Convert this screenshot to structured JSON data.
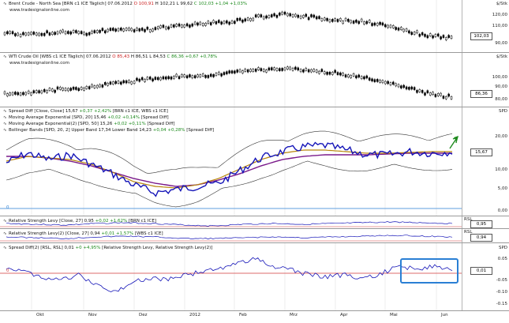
{
  "panes": [
    {
      "id": "brent",
      "legend": [
        {
          "name": "Brent Crude - North Sea [BRN c1 ICE  Täglich] 07.06.2012 ",
          "o": "O 100,91",
          "h": " H 102,21 L 99,62 ",
          "c": "C 102,03 +1,04 +1,03%"
        }
      ],
      "watermark": "www.tradesignalonline.com",
      "unit": "$/Stk",
      "ticks": [
        "120,00",
        "110,00",
        "100,00",
        "90,00"
      ],
      "current": "102,03"
    },
    {
      "id": "wti",
      "legend": [
        {
          "name": "WTI Crude Oil [WBS c1 ICE  Täglich] 07.06.2012 ",
          "o": "O 85,43",
          "h": " H 86,51 L 84,53 ",
          "c": "C 86,36 +0,67 +0,78%"
        }
      ],
      "watermark": "www.tradesignalonline.com",
      "unit": "$/Stk",
      "ticks": [
        "100,00",
        "90,00",
        "80,00"
      ],
      "current": "86,36"
    },
    {
      "id": "spread",
      "legend": [
        {
          "text": "Spread Diff [Close, Close] 15,67 ",
          "chg": "+0,37 +2,42%",
          "tail": " [BRN c1 ICE, WBS c1 ICE]"
        },
        {
          "text": "Moving Average Exponential [SPD, 20] 15,46 ",
          "chg": "+0,02 +0,14%",
          "tail": " [Spread Diff]"
        },
        {
          "text": "Moving Average Exponential(2) [SPD, 50] 15,26 ",
          "chg": "+0,02 +0,11%",
          "tail": " [Spread Diff]"
        },
        {
          "text": "Bollinger Bands [SPD, 20, 2] Upper Band 17,34 Lower Band 14,23 ",
          "chg": "+0,04 +0,28%",
          "tail": " [Spread Diff]"
        }
      ],
      "unit": "SPD",
      "ticks": [
        "20,00",
        "10,00",
        "5,00",
        "0,00"
      ],
      "current": "15,67",
      "zero_marker": "0"
    },
    {
      "id": "rsl1",
      "legend": [
        {
          "text": "Relative Strength Levy [Close, 27] 0,95 ",
          "chg": "+0,02 +1,62%",
          "tail": " [BRN c1 ICE]"
        }
      ],
      "unit": "RSL",
      "current": "0,95"
    },
    {
      "id": "rsl2",
      "legend": [
        {
          "text": "Relative Strength Levy(2) [Close, 27] 0,94 ",
          "chg": "+0,01 +1,57%",
          "tail": " [WBS c1 ICE]"
        }
      ],
      "unit": "RSL",
      "current": "0,94"
    },
    {
      "id": "spreaddiff2",
      "legend": [
        {
          "text": "Spread Diff(2) [RSL, RSL] 0,01 ",
          "chg": "+0 +4,95%",
          "tail": " [Relative Strength Levy, Relative Strength Levy(2)]"
        }
      ],
      "unit": "SPD",
      "ticks": [
        "0.05",
        "0.00",
        "-0.05",
        "-0.10",
        "-0.15"
      ],
      "current": "0,01",
      "zero_marker": "0"
    }
  ],
  "xaxis": {
    "labels": [
      "Okt",
      "Nov",
      "Dez",
      "2012",
      "Feb",
      "Mrz",
      "Apr",
      "Mai",
      "Jun"
    ]
  },
  "colors": {
    "spread": "#1515b8",
    "ema20": "#b8860b",
    "ema50": "#7a1a8a",
    "bands": "#333333",
    "rsl": "#1515b8",
    "highlight": "#2a7fd4",
    "arrow": "#1d8a1d",
    "zero": "#d23a3a"
  },
  "icons": {
    "legend_icon": "line-chart-icon"
  }
}
